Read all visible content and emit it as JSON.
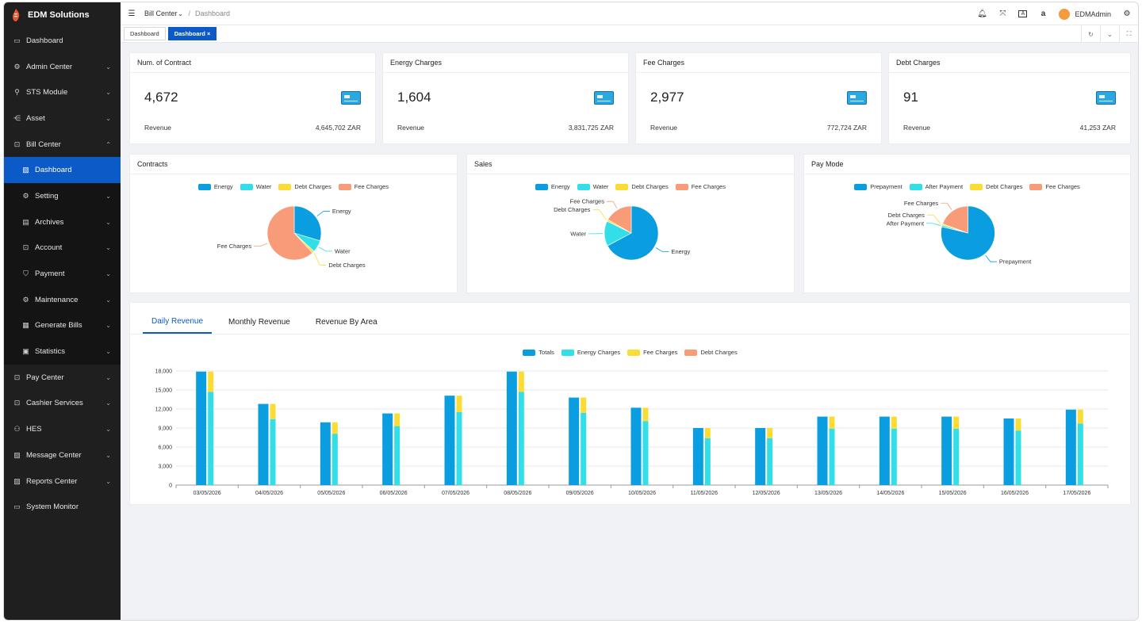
{
  "app": {
    "brand": "EDM Solutions"
  },
  "sidebar": {
    "items": [
      {
        "label": "Dashboard",
        "icon": "calendar-icon",
        "expandable": false
      },
      {
        "label": "Admin Center",
        "icon": "gear-icon",
        "expandable": true
      },
      {
        "label": "STS Module",
        "icon": "key-icon",
        "expandable": true
      },
      {
        "label": "Asset",
        "icon": "asset-icon",
        "expandable": true
      },
      {
        "label": "Bill Center",
        "icon": "bill-icon",
        "expandable": true,
        "open": true
      },
      {
        "label": "Pay Center",
        "icon": "bill-icon",
        "expandable": true
      },
      {
        "label": "Cashier Services",
        "icon": "bill-icon",
        "expandable": true
      },
      {
        "label": "HES",
        "icon": "network-icon",
        "expandable": true
      },
      {
        "label": "Message Center",
        "icon": "chart-icon",
        "expandable": true
      },
      {
        "label": "Reports Center",
        "icon": "chart-icon",
        "expandable": true
      },
      {
        "label": "System Monitor",
        "icon": "monitor-icon",
        "expandable": false
      }
    ],
    "bill_center_sub": [
      {
        "label": "Dashboard",
        "icon": "chart-icon",
        "active": true
      },
      {
        "label": "Setting",
        "icon": "gear-icon"
      },
      {
        "label": "Archives",
        "icon": "archive-icon"
      },
      {
        "label": "Account",
        "icon": "bill-icon"
      },
      {
        "label": "Payment",
        "icon": "shield-icon"
      },
      {
        "label": "Maintenance",
        "icon": "gear-icon"
      },
      {
        "label": "Generate Bills",
        "icon": "table-icon"
      },
      {
        "label": "Statistics",
        "icon": "stats-icon"
      }
    ]
  },
  "header": {
    "breadcrumb_parent": "Bill Center",
    "breadcrumb_sep": "/",
    "breadcrumb_current": "Dashboard",
    "user": "EDMAdmin"
  },
  "tags": [
    {
      "label": "Dashboard",
      "active": false
    },
    {
      "label": "Dashboard ×",
      "active": true
    }
  ],
  "stats": [
    {
      "title": "Num. of Contract",
      "value": "4,672",
      "foot_label": "Revenue",
      "foot_value": "4,645,702 ZAR"
    },
    {
      "title": "Energy Charges",
      "value": "1,604",
      "foot_label": "Revenue",
      "foot_value": "3,831,725 ZAR"
    },
    {
      "title": "Fee Charges",
      "value": "2,977",
      "foot_label": "Revenue",
      "foot_value": "772,724 ZAR"
    },
    {
      "title": "Debt Charges",
      "value": "91",
      "foot_label": "Revenue",
      "foot_value": "41,253 ZAR"
    }
  ],
  "colors": {
    "blue": "#0a9ee0",
    "cyan": "#32dfe8",
    "yellow": "#fbdc34",
    "orange": "#f89b79",
    "accent": "#0c59c8"
  },
  "chart_data": [
    {
      "type": "pie",
      "title": "Contracts",
      "legend": [
        "Energy",
        "Water",
        "Debt Charges",
        "Fee Charges"
      ],
      "slices": [
        {
          "name": "Energy",
          "value": 1385
        },
        {
          "name": "Water",
          "value": 340
        },
        {
          "name": "Debt Charges",
          "value": 60
        },
        {
          "name": "Fee Charges",
          "value": 2887
        }
      ]
    },
    {
      "type": "pie",
      "title": "Sales",
      "legend": [
        "Energy",
        "Water",
        "Debt Charges",
        "Fee Charges"
      ],
      "slices": [
        {
          "name": "Energy",
          "value": 3120
        },
        {
          "name": "Water",
          "value": 700
        },
        {
          "name": "Debt Charges",
          "value": 50
        },
        {
          "name": "Fee Charges",
          "value": 775
        }
      ]
    },
    {
      "type": "pie",
      "title": "Pay Mode",
      "legend": [
        "Prepayment",
        "After Payment",
        "Debt Charges",
        "Fee Charges"
      ],
      "slices": [
        {
          "name": "Prepayment",
          "value": 3660
        },
        {
          "name": "After Payment",
          "value": 45
        },
        {
          "name": "Debt Charges",
          "value": 40
        },
        {
          "name": "Fee Charges",
          "value": 900
        }
      ]
    },
    {
      "type": "bar",
      "tabs": [
        "Daily Revenue",
        "Monthly Revenue",
        "Revenue By Area"
      ],
      "active_tab": "Daily Revenue",
      "legend": [
        "Totals",
        "Energy Charges",
        "Fee Charges",
        "Debt Charges"
      ],
      "categories": [
        "03/05/2026",
        "04/05/2026",
        "05/05/2026",
        "06/05/2026",
        "07/05/2026",
        "08/05/2026",
        "09/05/2026",
        "10/05/2026",
        "11/05/2026",
        "12/05/2026",
        "13/05/2026",
        "14/05/2026",
        "15/05/2026",
        "16/05/2026",
        "17/05/2026"
      ],
      "series": [
        {
          "name": "Totals",
          "values": [
            17900,
            12800,
            9900,
            11300,
            14100,
            17900,
            13800,
            12200,
            9000,
            9000,
            10800,
            10800,
            10800,
            10500,
            11900
          ]
        },
        {
          "name": "Energy Charges",
          "values": [
            14700,
            10400,
            8100,
            9300,
            11500,
            14700,
            11400,
            10100,
            7400,
            7400,
            8900,
            8900,
            8900,
            8600,
            9700
          ]
        },
        {
          "name": "Fee Charges",
          "values": [
            3200,
            2400,
            1800,
            2000,
            2600,
            3200,
            2400,
            2100,
            1600,
            1600,
            1900,
            1900,
            1900,
            1900,
            2200
          ]
        },
        {
          "name": "Debt Charges",
          "values": [
            0,
            0,
            0,
            0,
            0,
            0,
            0,
            0,
            0,
            0,
            0,
            0,
            0,
            0,
            0
          ]
        }
      ],
      "yticks": [
        "0",
        "3,000",
        "6,000",
        "9,000",
        "12,000",
        "15,000",
        "18,000"
      ],
      "ylim": [
        0,
        18000
      ]
    }
  ]
}
